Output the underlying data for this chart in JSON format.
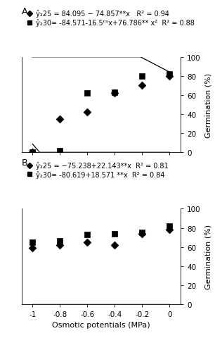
{
  "panel_A": {
    "title": "A.",
    "legend_25": " ŷ₂25 = 84.095 − 74.857**x   R² = 0.94",
    "legend_30": " ŷ₂30= -84.571-16.5ⁿˢx+76.786** x²  R² = 0.88",
    "eq25_a": 84.095,
    "eq25_b": -74.857,
    "eq30_a": -84.571,
    "eq30_b": -16.5,
    "eq30_c": 76.786,
    "scatter_x_25": [
      -1.0,
      -0.8,
      -0.6,
      -0.4,
      -0.2,
      0.0
    ],
    "scatter_y_25": [
      0.0,
      35.0,
      42.0,
      62.0,
      70.0,
      80.0
    ],
    "scatter_x_30": [
      -1.0,
      -0.8,
      -0.6,
      -0.4,
      -0.2,
      0.0
    ],
    "scatter_y_30": [
      0.0,
      2.0,
      62.0,
      63.0,
      80.0,
      82.0
    ],
    "ylim": [
      0,
      100
    ],
    "yticks": [
      0,
      20,
      40,
      60,
      80,
      100
    ]
  },
  "panel_B": {
    "title": "B.",
    "legend_25": " ŷ₂25 = −75.238+22.143**x  R² = 0.81",
    "legend_30": " ŷ₂30= -80.619+18.571 **x  R² = 0.84",
    "eq25_a": -75.238,
    "eq25_b": 22.143,
    "eq30_a": -80.619,
    "eq30_b": 18.571,
    "scatter_x_25": [
      -1.0,
      -0.8,
      -0.6,
      -0.4,
      -0.2,
      0.0
    ],
    "scatter_y_25": [
      59.0,
      62.0,
      65.0,
      62.0,
      74.0,
      78.0
    ],
    "scatter_x_30": [
      -1.0,
      -0.8,
      -0.6,
      -0.4,
      -0.2,
      0.0
    ],
    "scatter_y_30": [
      65.0,
      66.0,
      73.0,
      74.0,
      75.0,
      82.0
    ],
    "ylim": [
      0,
      100
    ],
    "yticks": [
      0,
      20,
      40,
      60,
      80,
      100
    ]
  },
  "xlabel": "Osmotic potentials (MPa)",
  "ylabel": "Germination (%)",
  "xticks": [
    -1.0,
    -0.8,
    -0.6,
    -0.4,
    -0.2,
    0.0
  ],
  "xticklabels": [
    "-1",
    "-0.8",
    "-0.6",
    "-0.4",
    "-0.2",
    "0"
  ],
  "xlim": [
    -1.08,
    0.08
  ],
  "color_25": "#000000",
  "color_30": "#000000",
  "marker_25": "D",
  "marker_30": "s",
  "markersize": 4,
  "linewidth": 0.9,
  "fontsize_legend": 7.0,
  "fontsize_label": 8,
  "fontsize_tick": 7.5,
  "fontsize_panel": 9
}
